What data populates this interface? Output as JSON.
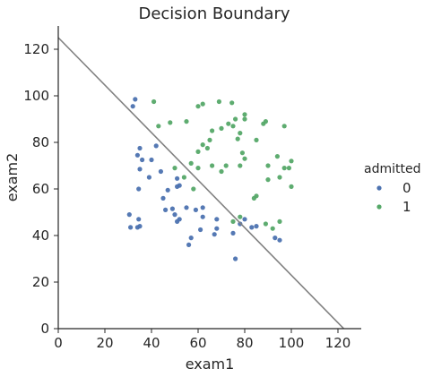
{
  "chart_data": {
    "type": "scatter",
    "title": "Decision Boundary",
    "xlabel": "exam1",
    "ylabel": "exam2",
    "xlim": [
      0,
      130
    ],
    "ylim": [
      0,
      130
    ],
    "xticks": [
      0,
      20,
      40,
      60,
      80,
      100,
      120
    ],
    "yticks": [
      0,
      20,
      40,
      60,
      80,
      100,
      120
    ],
    "grid": false,
    "legend": {
      "title": "admitted",
      "position": "right"
    },
    "series": [
      {
        "name": "0",
        "color": "#4c72b0",
        "points": [
          [
            33,
            98.5
          ],
          [
            32,
            95.5
          ],
          [
            35,
            77.5
          ],
          [
            34,
            74.5
          ],
          [
            36,
            72.5
          ],
          [
            35,
            68.5
          ],
          [
            39,
            65
          ],
          [
            42,
            78.5
          ],
          [
            40,
            72.5
          ],
          [
            44,
            67.5
          ],
          [
            34.5,
            60
          ],
          [
            51,
            64.5
          ],
          [
            47,
            59.5
          ],
          [
            51,
            61
          ],
          [
            45,
            56
          ],
          [
            52,
            61.5
          ],
          [
            49,
            51.5
          ],
          [
            46,
            51
          ],
          [
            55,
            52
          ],
          [
            59,
            51
          ],
          [
            62,
            52
          ],
          [
            50,
            49
          ],
          [
            52,
            47
          ],
          [
            51,
            46
          ],
          [
            34.5,
            47
          ],
          [
            30.5,
            49
          ],
          [
            31,
            43.5
          ],
          [
            34,
            43.5
          ],
          [
            35,
            44
          ],
          [
            57,
            39
          ],
          [
            56,
            36
          ],
          [
            61,
            42.5
          ],
          [
            67,
            40.5
          ],
          [
            68,
            43
          ],
          [
            75,
            41
          ],
          [
            76,
            30
          ],
          [
            80,
            47
          ],
          [
            83,
            43.5
          ],
          [
            85,
            44
          ],
          [
            93,
            39
          ],
          [
            95,
            38
          ],
          [
            68,
            47
          ],
          [
            62,
            48
          ],
          [
            78,
            45
          ]
        ]
      },
      {
        "name": "1",
        "color": "#55a868",
        "points": [
          [
            41,
            97.5
          ],
          [
            62,
            96.5
          ],
          [
            69,
            97.5
          ],
          [
            74.5,
            97
          ],
          [
            80,
            92
          ],
          [
            80,
            90
          ],
          [
            76,
            90
          ],
          [
            73,
            88
          ],
          [
            75,
            87
          ],
          [
            70,
            86
          ],
          [
            60,
            95.5
          ],
          [
            48,
            88.5
          ],
          [
            43,
            87
          ],
          [
            55,
            89
          ],
          [
            65,
            81
          ],
          [
            66,
            85
          ],
          [
            78,
            84
          ],
          [
            88,
            88
          ],
          [
            89,
            89
          ],
          [
            97,
            87
          ],
          [
            85,
            81
          ],
          [
            77,
            81.5
          ],
          [
            62,
            79
          ],
          [
            64,
            77.5
          ],
          [
            60,
            76
          ],
          [
            57,
            71
          ],
          [
            60,
            69
          ],
          [
            66,
            70
          ],
          [
            72,
            70
          ],
          [
            70,
            67.5
          ],
          [
            79,
            75.5
          ],
          [
            80,
            73
          ],
          [
            78,
            70
          ],
          [
            90,
            70
          ],
          [
            94,
            74
          ],
          [
            97,
            69
          ],
          [
            99,
            69
          ],
          [
            100,
            72
          ],
          [
            95,
            65
          ],
          [
            90,
            64
          ],
          [
            100,
            61
          ],
          [
            85,
            57
          ],
          [
            84,
            56
          ],
          [
            78,
            48
          ],
          [
            89,
            45
          ],
          [
            92,
            43
          ],
          [
            95,
            46
          ],
          [
            75,
            46
          ],
          [
            54,
            65
          ],
          [
            58,
            60
          ],
          [
            50,
            69
          ]
        ]
      }
    ],
    "decision_boundary": {
      "x": [
        0,
        122.5
      ],
      "y": [
        125,
        0
      ],
      "color": "#808080"
    }
  }
}
